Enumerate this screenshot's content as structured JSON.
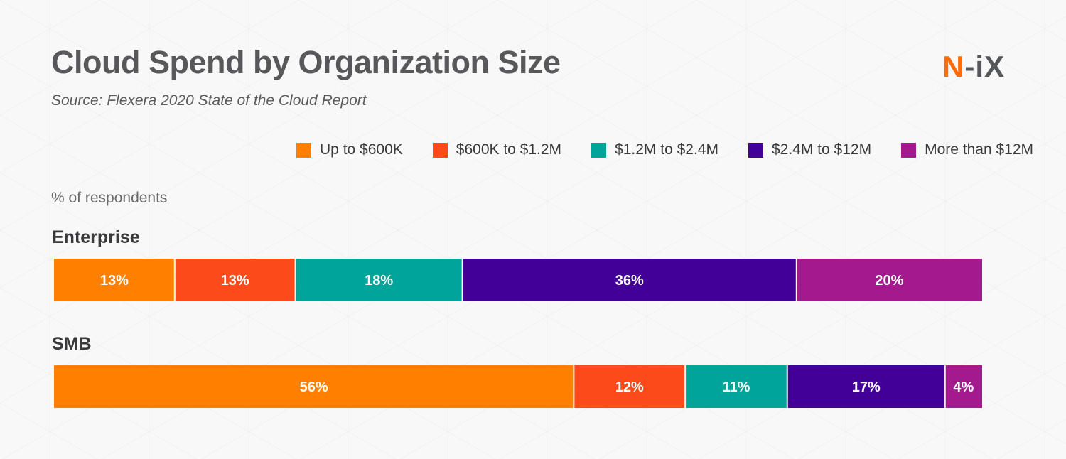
{
  "title": "Cloud Spend by Organization Size",
  "subtitle": "Source: Flexera 2020 State of the Cloud Report",
  "logo": {
    "n": "N",
    "rest": "-iX"
  },
  "chart_data": {
    "type": "bar",
    "orientation": "horizontal-stacked-100",
    "title": "Cloud Spend by Organization Size",
    "ylabel": "% of respondents",
    "categories": [
      "Enterprise",
      "SMB"
    ],
    "legend_position": "top-right",
    "grid": false,
    "series": [
      {
        "name": "Up to $600K",
        "color": "#ff8000",
        "values": [
          13,
          56
        ]
      },
      {
        "name": "$600K to $1.2M",
        "color": "#fc4a1a",
        "values": [
          13,
          12
        ]
      },
      {
        "name": "$1.2M to $2.4M",
        "color": "#00a499",
        "values": [
          18,
          11
        ]
      },
      {
        "name": "$2.4M to $12M",
        "color": "#430098",
        "values": [
          36,
          17
        ]
      },
      {
        "name": "More than $12M",
        "color": "#a4198e",
        "values": [
          20,
          4
        ]
      }
    ]
  }
}
